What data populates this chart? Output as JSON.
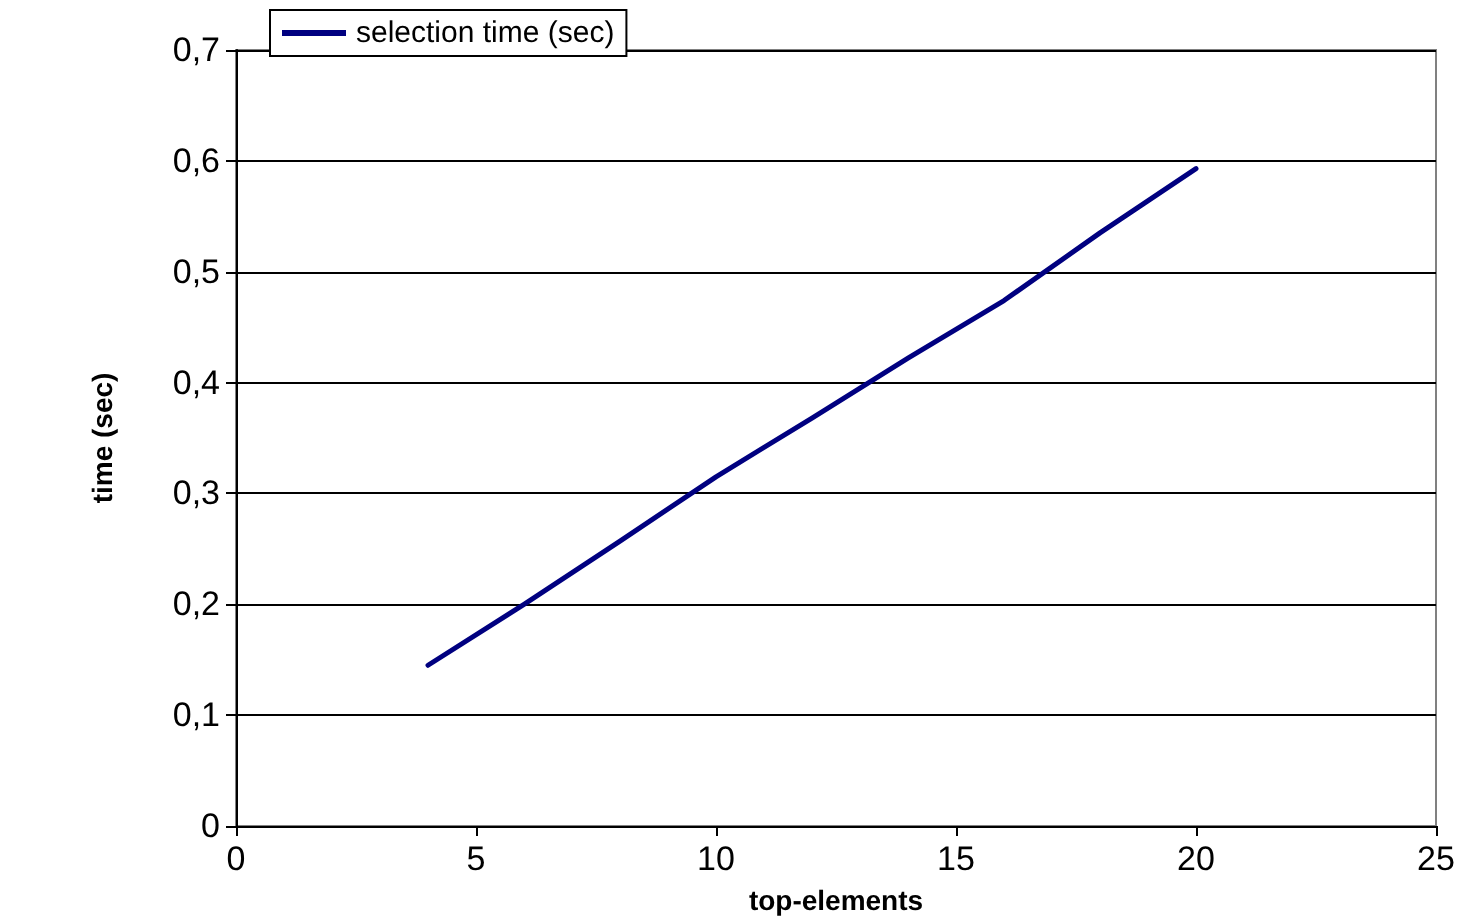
{
  "chart_data": {
    "type": "line",
    "xlabel": "top-elements",
    "ylabel": "time (sec)",
    "x": [
      4,
      6,
      8,
      10,
      12,
      14,
      16,
      18,
      20
    ],
    "series": [
      {
        "name": "selection time (sec)",
        "color": "#000080",
        "values": [
          0.145,
          0.2,
          0.257,
          0.315,
          0.368,
          0.422,
          0.474,
          0.535,
          0.593
        ]
      }
    ],
    "xlim": [
      0,
      25
    ],
    "xticks": [
      0,
      5,
      10,
      15,
      20,
      25
    ],
    "ylim": [
      0,
      0.7
    ],
    "yticks": [
      {
        "value": 0,
        "label": "0"
      },
      {
        "value": 0.1,
        "label": "0,1"
      },
      {
        "value": 0.2,
        "label": "0,2"
      },
      {
        "value": 0.3,
        "label": "0,3"
      },
      {
        "value": 0.4,
        "label": "0,4"
      },
      {
        "value": 0.5,
        "label": "0,5"
      },
      {
        "value": 0.6,
        "label": "0,6"
      },
      {
        "value": 0.7,
        "label": "0,7"
      }
    ],
    "grid": "y",
    "legend": "top left",
    "marker": "none",
    "line_style": "solid"
  }
}
